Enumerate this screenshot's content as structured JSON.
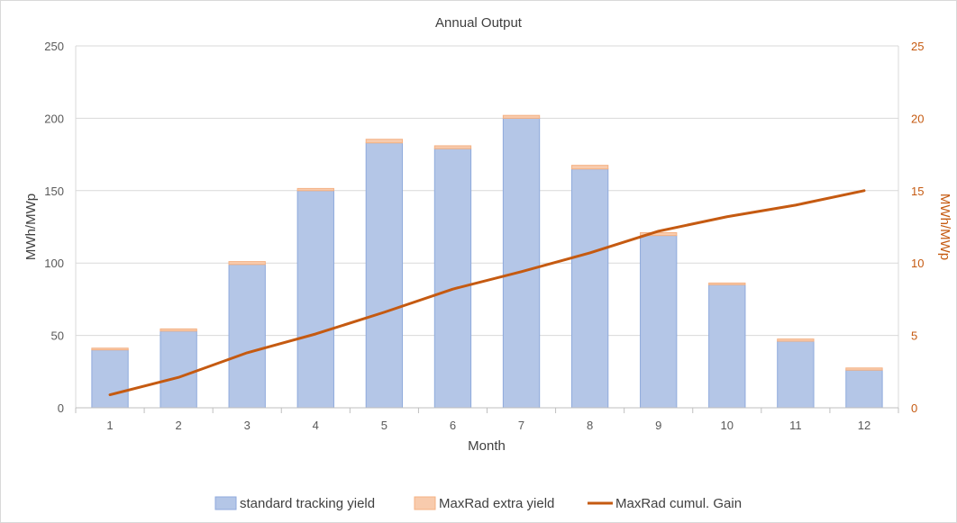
{
  "chart_data": {
    "type": "bar",
    "title": "Annual Output",
    "xlabel": "Month",
    "ylabel": "MWh/MWp",
    "y2label": "MWh/MWp",
    "categories": [
      "1",
      "2",
      "3",
      "4",
      "5",
      "6",
      "7",
      "8",
      "9",
      "10",
      "11",
      "12"
    ],
    "ylim": [
      0,
      250
    ],
    "y2lim": [
      0,
      25
    ],
    "yticks": [
      "0",
      "50",
      "100",
      "150",
      "200",
      "250"
    ],
    "y2ticks": [
      "0",
      "5",
      "10",
      "15",
      "20",
      "25"
    ],
    "grid": true,
    "legend_position": "bottom",
    "stacked": true,
    "series": [
      {
        "name": "standard tracking yield",
        "type": "bar",
        "axis": "left",
        "color": "#b4c6e7",
        "values": [
          40,
          53,
          99,
          150,
          183,
          179,
          200,
          165,
          119,
          85,
          46,
          26
        ]
      },
      {
        "name": "MaxRad extra yield",
        "type": "bar",
        "axis": "left",
        "color": "#f8cbad",
        "values": [
          1.2,
          1.5,
          2,
          1.5,
          2.5,
          2,
          2,
          2.5,
          2,
          1.2,
          1.5,
          1.5
        ]
      },
      {
        "name": "MaxRad cumul. Gain",
        "type": "line",
        "axis": "right",
        "color": "#c55a11",
        "values": [
          0.9,
          2.1,
          3.8,
          5.1,
          6.6,
          8.2,
          9.4,
          10.7,
          12.2,
          13.2,
          14.0,
          15.0
        ]
      }
    ]
  },
  "colors": {
    "left_axis_text": "#595959",
    "right_axis_text": "#c55a11",
    "grid": "#d9d9d9",
    "bar_outline": "#8faadc"
  }
}
